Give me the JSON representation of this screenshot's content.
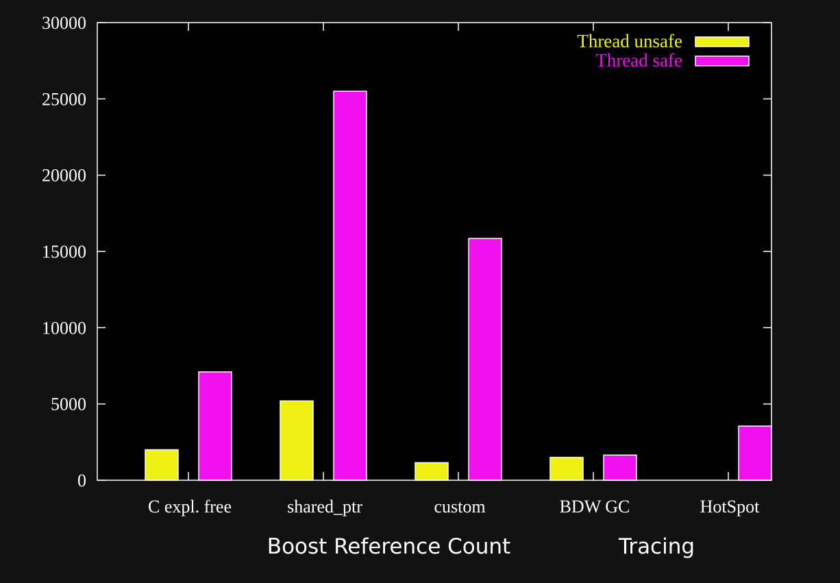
{
  "chart_data": {
    "type": "bar",
    "categories": [
      "C expl. free",
      "shared_ptr",
      "custom",
      "BDW GC",
      "HotSpot"
    ],
    "series": [
      {
        "name": "Thread unsafe",
        "color": "#f0f014",
        "values": [
          2000,
          5200,
          1150,
          1500,
          null
        ]
      },
      {
        "name": "Thread safe",
        "color": "#f010f0",
        "values": [
          7100,
          25500,
          15850,
          1650,
          3550
        ]
      }
    ],
    "ylim": [
      0,
      30000
    ],
    "yticks": [
      "0",
      "5000",
      "10000",
      "15000",
      "20000",
      "25000",
      "30000"
    ],
    "legend_position": "top-right",
    "grid": false,
    "group_labels": [
      {
        "label": "Boost Reference Count",
        "spans": [
          "shared_ptr",
          "custom"
        ]
      },
      {
        "label": "Tracing",
        "spans": [
          "BDW GC",
          "HotSpot"
        ]
      }
    ]
  }
}
